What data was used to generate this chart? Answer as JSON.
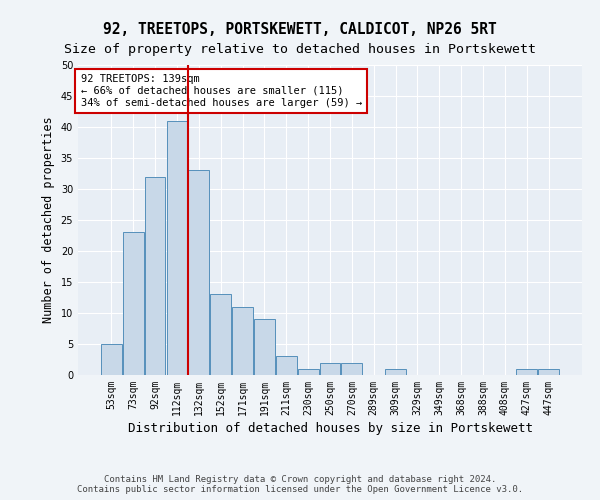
{
  "title": "92, TREETOPS, PORTSKEWETT, CALDICOT, NP26 5RT",
  "subtitle": "Size of property relative to detached houses in Portskewett",
  "xlabel": "Distribution of detached houses by size in Portskewett",
  "ylabel": "Number of detached properties",
  "bar_color": "#c8d8e8",
  "bar_edge_color": "#5590bb",
  "categories": [
    "53sqm",
    "73sqm",
    "92sqm",
    "112sqm",
    "132sqm",
    "152sqm",
    "171sqm",
    "191sqm",
    "211sqm",
    "230sqm",
    "250sqm",
    "270sqm",
    "289sqm",
    "309sqm",
    "329sqm",
    "349sqm",
    "368sqm",
    "388sqm",
    "408sqm",
    "427sqm",
    "447sqm"
  ],
  "values": [
    5,
    23,
    32,
    41,
    33,
    13,
    11,
    9,
    3,
    1,
    2,
    2,
    0,
    1,
    0,
    0,
    0,
    0,
    0,
    1,
    1
  ],
  "annotation_text": "92 TREETOPS: 139sqm\n← 66% of detached houses are smaller (115)\n34% of semi-detached houses are larger (59) →",
  "annotation_box_color": "#ffffff",
  "annotation_box_edge_color": "#cc0000",
  "vline_color": "#cc0000",
  "footer_text": "Contains HM Land Registry data © Crown copyright and database right 2024.\nContains public sector information licensed under the Open Government Licence v3.0.",
  "ylim": [
    0,
    50
  ],
  "yticks": [
    0,
    5,
    10,
    15,
    20,
    25,
    30,
    35,
    40,
    45,
    50
  ],
  "bg_color": "#e8eef5",
  "fig_bg_color": "#f0f4f8",
  "grid_color": "#ffffff",
  "title_fontsize": 10.5,
  "subtitle_fontsize": 9.5,
  "axis_label_fontsize": 8.5,
  "tick_fontsize": 7,
  "footer_fontsize": 6.5,
  "annotation_fontsize": 7.5,
  "vline_x_index": 3.5
}
